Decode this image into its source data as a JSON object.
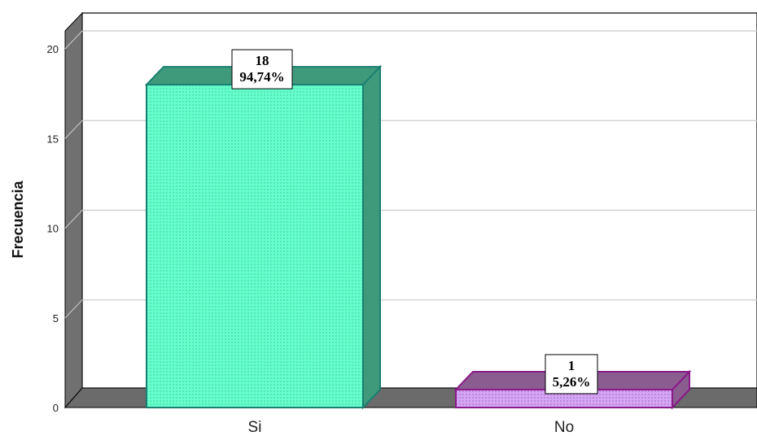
{
  "chart_data": {
    "type": "bar",
    "categories": [
      "Si",
      "No"
    ],
    "values": [
      18,
      1
    ],
    "percent_labels": [
      "94,74%",
      "5,26%"
    ],
    "count_labels": [
      "18",
      "1"
    ],
    "title": "",
    "xlabel": "",
    "ylabel": "Frecuencia",
    "ylim": [
      0,
      20
    ],
    "yticks": [
      "0",
      "5",
      "10",
      "15",
      "20"
    ],
    "grid": true,
    "style": "3d",
    "colors": {
      "Si": {
        "front": "#66ffcc",
        "side": "#3f9a7c",
        "stroke": "#1a8070"
      },
      "No": {
        "front": "#d4a6f5",
        "side": "#8a5c8f",
        "stroke": "#8a1a8a"
      },
      "wall": "#707070",
      "floor": "#6b6b6b"
    }
  }
}
